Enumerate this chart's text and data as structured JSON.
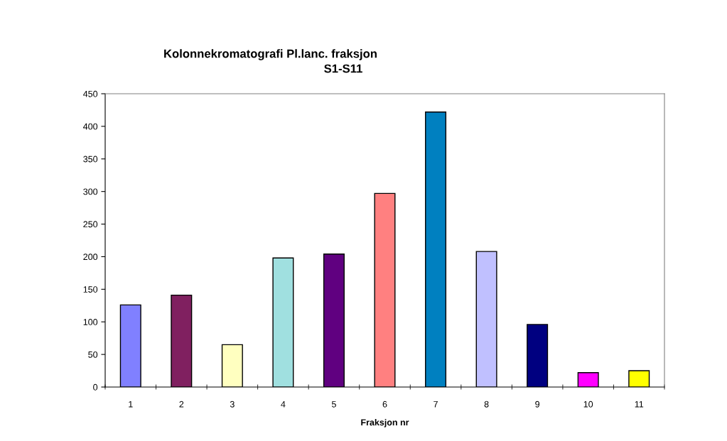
{
  "chart_data": {
    "type": "bar",
    "title": "Kolonnekromatografi Pl.lanc. fraksjon",
    "subtitle": "S1-S11",
    "xlabel": "Fraksjon nr",
    "categories": [
      "1",
      "2",
      "3",
      "4",
      "5",
      "6",
      "7",
      "8",
      "9",
      "10",
      "11"
    ],
    "values": [
      126,
      141,
      65,
      198,
      204,
      297,
      422,
      208,
      96,
      22,
      25
    ],
    "colors": [
      "#8080ff",
      "#802060",
      "#ffffc0",
      "#a0e0e0",
      "#600080",
      "#ff8080",
      "#0080c0",
      "#c0c0ff",
      "#000080",
      "#ff00ff",
      "#ffff00"
    ],
    "ylim": [
      0,
      450
    ],
    "yticks": [
      0,
      50,
      100,
      150,
      200,
      250,
      300,
      350,
      400,
      450
    ],
    "grid": false,
    "legend": false
  }
}
